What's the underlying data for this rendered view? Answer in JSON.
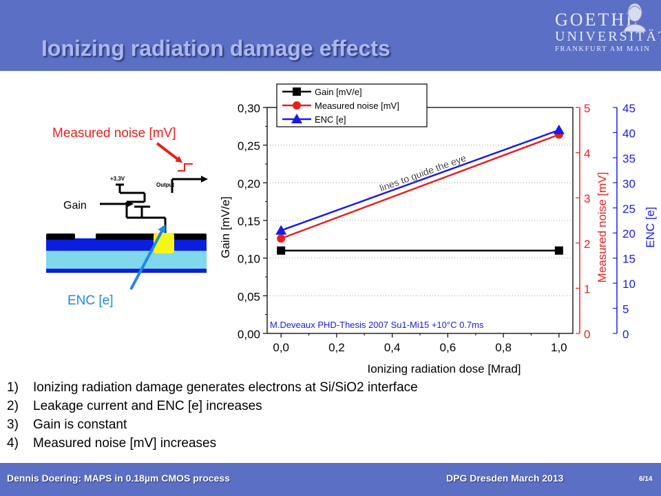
{
  "slide": {
    "title": "Ionizing radiation damage effects",
    "logo": {
      "line1": "GOETHE",
      "line2": "UNIVERSITÄT",
      "line3": "FRANKFURT AM MAIN",
      "icon": "goethe-bust-icon"
    },
    "footer": {
      "left": "Dennis Doering: MAPS in 0.18µm CMOS process",
      "middle": "DPG Dresden March 2013",
      "page": "6/14"
    },
    "bullets": [
      {
        "num": "1)",
        "text": "Ionizing radiation damage generates electrons at Si/SiO2 interface"
      },
      {
        "num": "2)",
        "text": "Leakage current and ENC [e] increases"
      },
      {
        "num": "3)",
        "text": "Gain is constant"
      },
      {
        "num": "4)",
        "text": "Measured noise [mV] increases"
      }
    ]
  },
  "schematic": {
    "label_noise": "Measured noise [mV]",
    "label_gain": "Gain",
    "label_enc": "ENC [e]",
    "label_vdd": "+3.3V",
    "label_output": "Output",
    "colors": {
      "noise": "#e8201c",
      "enc": "#1e88e5",
      "diode": "#f5f51a",
      "substrate": "#7fd8ec",
      "well": "#0a1ee0"
    }
  },
  "chart_data": {
    "type": "line",
    "x": [
      0.0,
      1.0
    ],
    "xlim": [
      -0.05,
      1.05
    ],
    "xticks": [
      "0,0",
      "0,2",
      "0,4",
      "0,6",
      "0,8",
      "1,0"
    ],
    "xlabel": "Ionizing radiation dose [Mrad]",
    "axes": [
      {
        "name": "gain",
        "label": "Gain [mV/e]",
        "lim": [
          0,
          0.3
        ],
        "ticks": [
          "0,00",
          "0,05",
          "0,10",
          "0,15",
          "0,20",
          "0,25",
          "0,30"
        ],
        "color": "#000000"
      },
      {
        "name": "noise",
        "label": "Measured noise [mV]",
        "lim": [
          0,
          5
        ],
        "ticks": [
          "0",
          "1",
          "2",
          "3",
          "4",
          "5"
        ],
        "color": "#e8201c"
      },
      {
        "name": "enc",
        "label": "ENC [e]",
        "lim": [
          0,
          45
        ],
        "ticks": [
          "0",
          "5",
          "10",
          "15",
          "20",
          "25",
          "30",
          "35",
          "40",
          "45"
        ],
        "color": "#1a1ae6"
      }
    ],
    "series": [
      {
        "name": "Gain [mV/e]",
        "axis": "gain",
        "values": [
          0.11,
          0.11
        ],
        "color": "#000000",
        "marker": "square"
      },
      {
        "name": "Measured noise [mV]",
        "axis": "noise",
        "values": [
          2.1,
          4.4
        ],
        "color": "#e8201c",
        "marker": "circle"
      },
      {
        "name": "ENC [e]",
        "axis": "enc",
        "values": [
          20.5,
          40.5
        ],
        "color": "#1a1ae6",
        "marker": "triangle"
      }
    ],
    "annotation": "lines to guide the eye",
    "note": "M.Deveaux PHD-Thesis 2007  Su1-Mi15 +10°C 0.7ms",
    "legend_position": "top-right",
    "grid": "dotted horizontal"
  }
}
